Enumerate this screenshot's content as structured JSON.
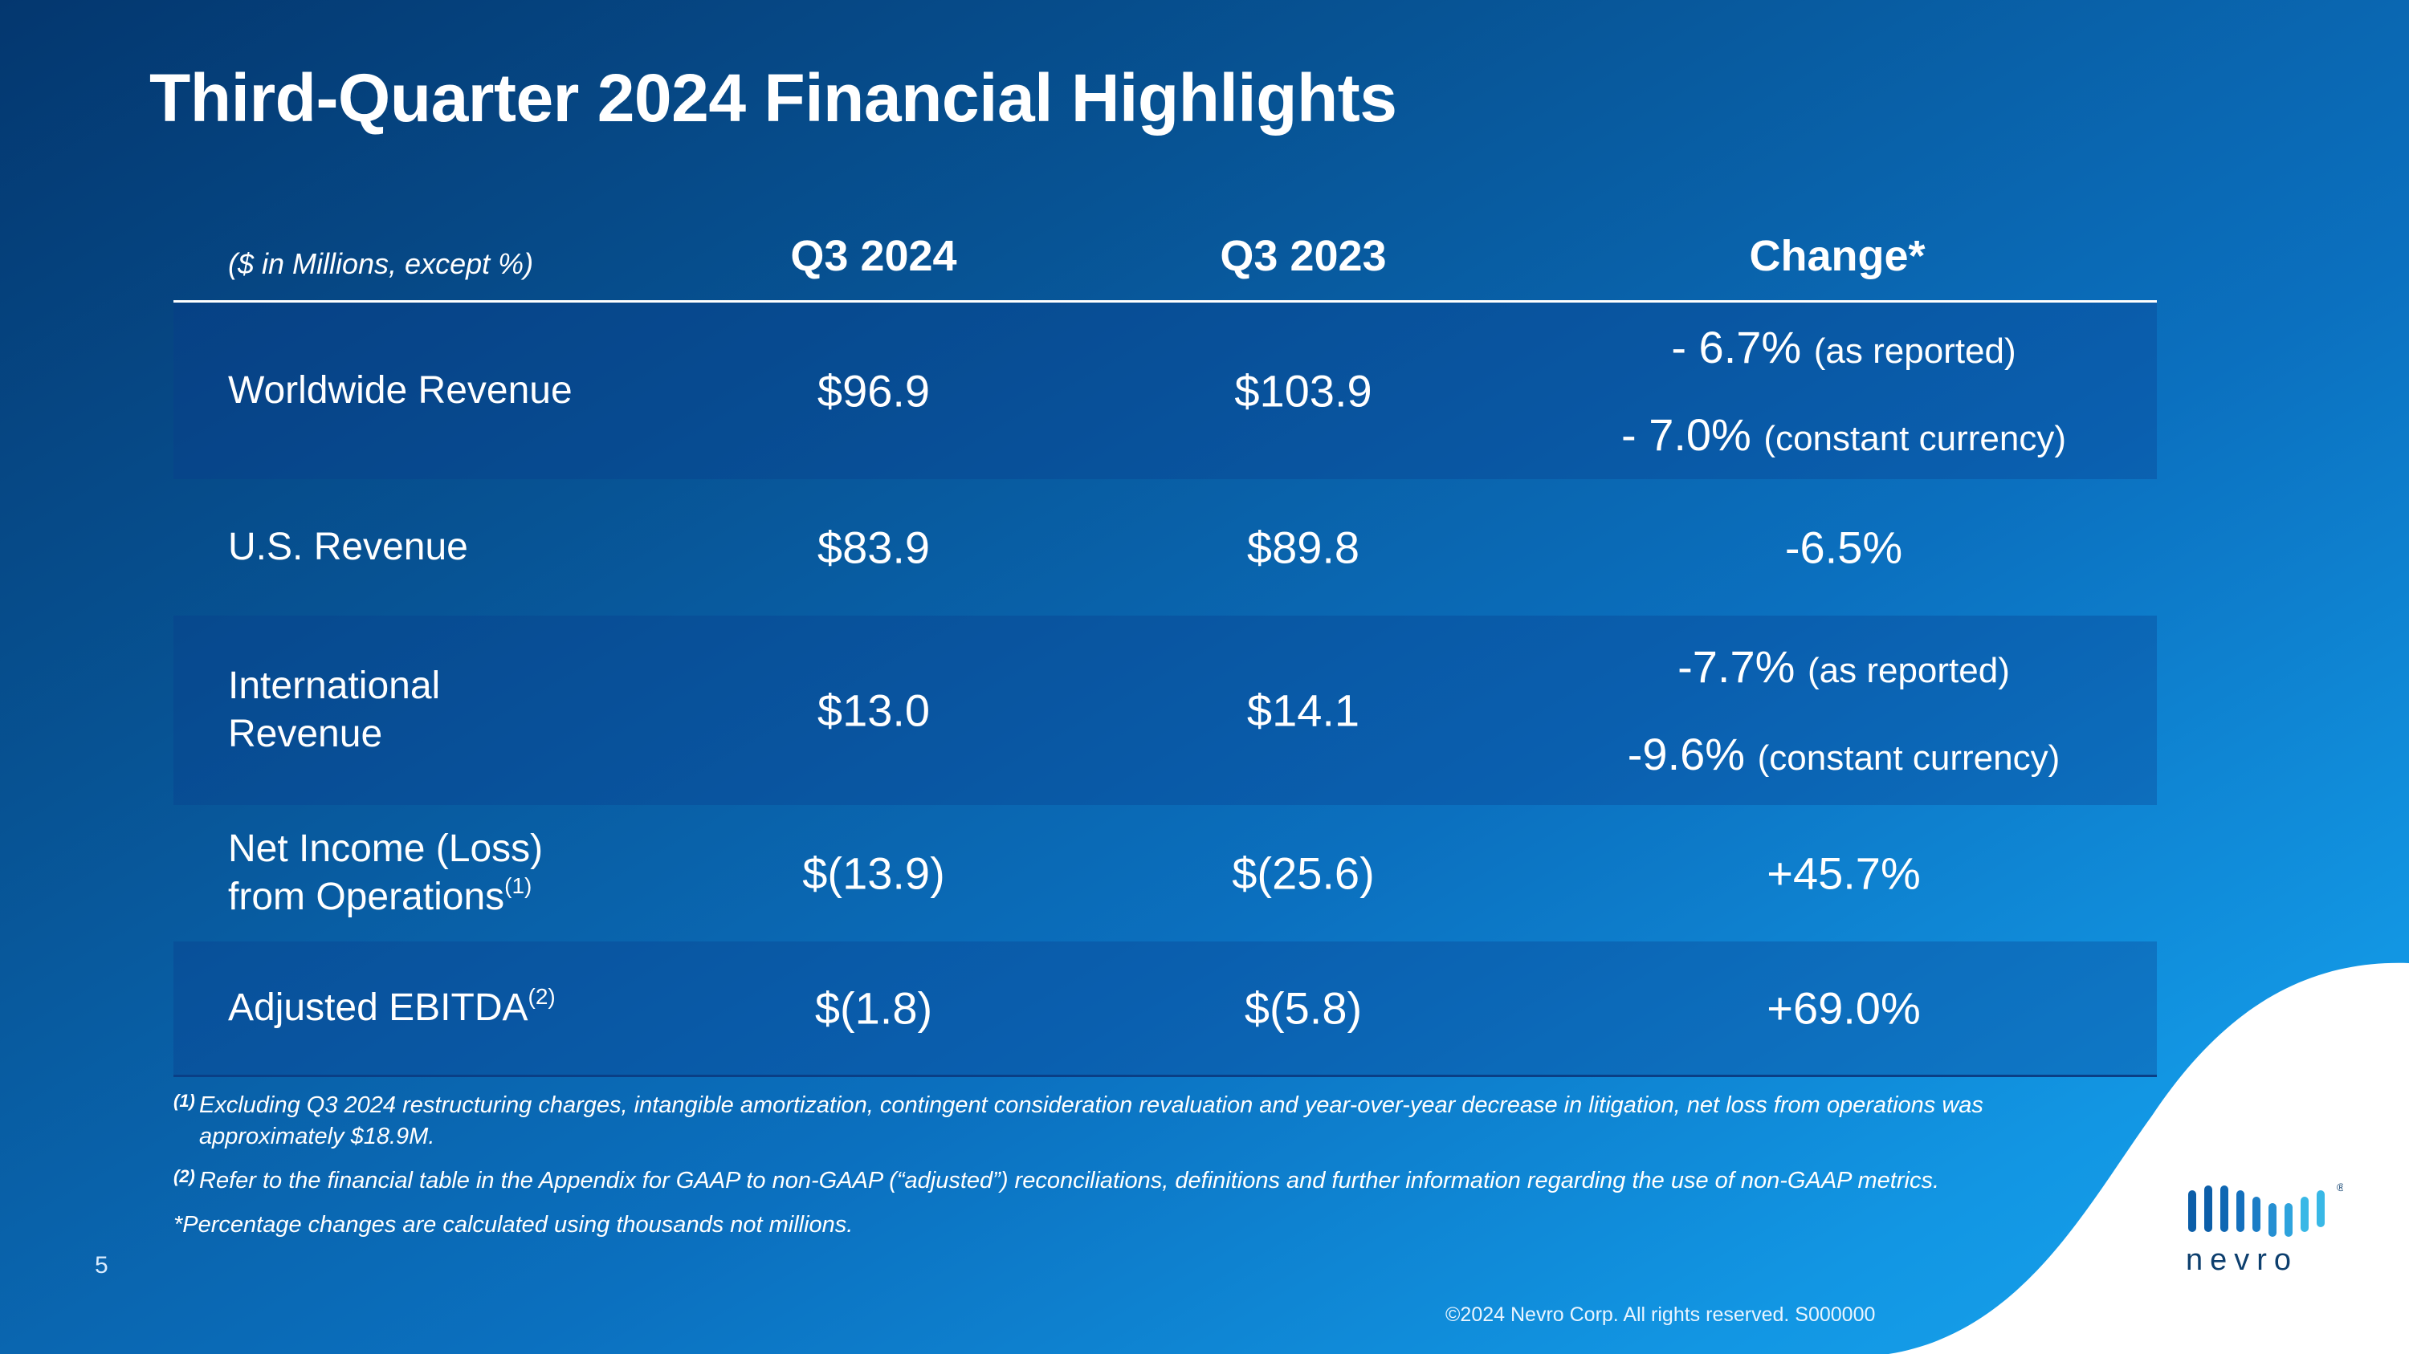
{
  "slide": {
    "title": "Third-Quarter 2024 Financial Highlights",
    "page_number": "5",
    "copyright": "©2024 Nevro Corp. All rights reserved. S000000",
    "brand": "nevro",
    "brand_mark": "®"
  },
  "table": {
    "units_label": "($ in Millions, except %)",
    "col_q3_2024": "Q3 2024",
    "col_q3_2023": "Q3 2023",
    "col_change": "Change*",
    "rows": [
      {
        "label_line1": "Worldwide Revenue",
        "q3_2024": "$96.9",
        "q3_2023": "$103.9",
        "change_line1_value": "- 6.7%",
        "change_line1_note": "(as reported)",
        "change_line2_value": "- 7.0%",
        "change_line2_note": "(constant currency)"
      },
      {
        "label_line1": "U.S. Revenue",
        "q3_2024": "$83.9",
        "q3_2023": "$89.8",
        "change": "-6.5%"
      },
      {
        "label_line1": "International",
        "label_line2": "Revenue",
        "q3_2024": "$13.0",
        "q3_2023": "$14.1",
        "change_line1_value": "-7.7%",
        "change_line1_note": "(as reported)",
        "change_line2_value": "-9.6%",
        "change_line2_note": "(constant currency)"
      },
      {
        "label_line1": "Net Income (Loss)",
        "label_line2": "from Operations",
        "label_sup": "(1)",
        "q3_2024": "$(13.9)",
        "q3_2023": "$(25.6)",
        "change": "+45.7%"
      },
      {
        "label_line1": "Adjusted EBITDA",
        "label_sup": "(2)",
        "q3_2024": "$(1.8)",
        "q3_2023": "$(5.8)",
        "change": "+69.0%"
      }
    ]
  },
  "footnotes": {
    "note1_mark": "(1)",
    "note1_line1": "Excluding Q3 2024  restructuring charges, intangible amortization, contingent consideration revaluation and year-over-year decrease in litigation, net loss from operations was",
    "note1_line2": "approximately $18.9M.",
    "note2_mark": "(2)",
    "note2_text": "Refer to the financial table in the Appendix for GAAP to non-GAAP (“adjusted”) reconciliations, definitions and further information regarding the use of non-GAAP metrics.",
    "note3_text": "*Percentage changes are calculated using thousands not millions."
  },
  "colors": {
    "bg_dark": "#04376f",
    "bg_light": "#18a6ef",
    "wave": "#ffffff",
    "logo_dark": "#0c5ea8",
    "logo_light": "#39b8e6",
    "logo_text": "#0d3f6e"
  }
}
